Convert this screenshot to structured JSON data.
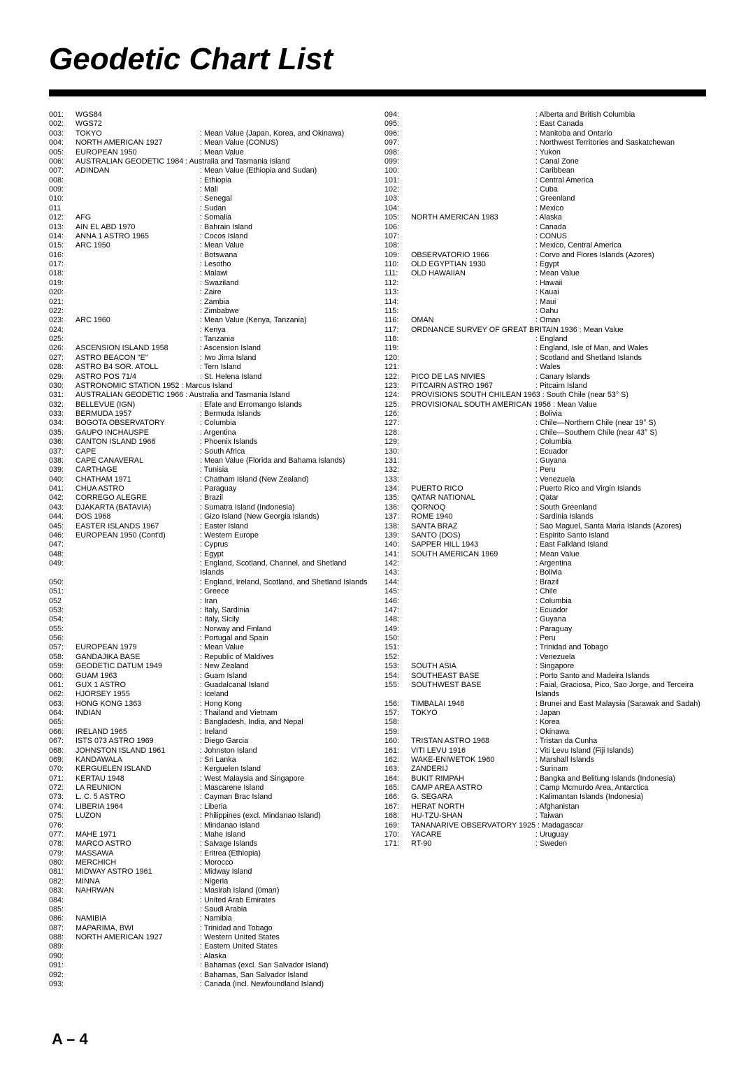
{
  "title": "Geodetic Chart List",
  "footer": "A – 4",
  "left": [
    {
      "n": "001:",
      "m": "WGS84",
      "d": ""
    },
    {
      "n": "002:",
      "m": "WGS72",
      "d": ""
    },
    {
      "n": "003:",
      "m": "TOKYO",
      "d": ": Mean Value (Japan, Korea, and Okinawa)"
    },
    {
      "n": "004:",
      "m": "NORTH AMERICAN 1927",
      "d": ": Mean Value (CONUS)"
    },
    {
      "n": "005:",
      "m": "EUROPEAN 1950",
      "d": ": Mean Value"
    },
    {
      "n": "006:",
      "m": "AUSTRALIAN GEODETIC 1984 : Australia and Tasmania Island",
      "d": "",
      "span": true
    },
    {
      "n": "007:",
      "m": "ADINDAN",
      "d": ": Mean Value (Ethiopia and Sudan)"
    },
    {
      "n": "008:",
      "m": "",
      "d": ": Ethiopia"
    },
    {
      "n": "009:",
      "m": "",
      "d": ": Mali"
    },
    {
      "n": "010:",
      "m": "",
      "d": ": Senegal"
    },
    {
      "n": "011",
      "m": "",
      "d": ": Sudan"
    },
    {
      "n": "012:",
      "m": "AFG",
      "d": ": Somalia"
    },
    {
      "n": "013:",
      "m": "AIN EL ABD 1970",
      "d": ": Bahrain Island"
    },
    {
      "n": "014:",
      "m": "ANNA 1 ASTRO 1965",
      "d": ": Cocos Island"
    },
    {
      "n": "015:",
      "m": "ARC 1950",
      "d": ": Mean Value"
    },
    {
      "n": "016:",
      "m": "",
      "d": ": Botswana"
    },
    {
      "n": "017:",
      "m": "",
      "d": ": Lesotho"
    },
    {
      "n": "018:",
      "m": "",
      "d": ": Malawi"
    },
    {
      "n": "019:",
      "m": "",
      "d": ": Swaziland"
    },
    {
      "n": "020:",
      "m": "",
      "d": ": Zaire"
    },
    {
      "n": "021:",
      "m": "",
      "d": ": Zambia"
    },
    {
      "n": "022:",
      "m": "",
      "d": ": Zimbabwe"
    },
    {
      "n": "023:",
      "m": "ARC 1960",
      "d": ": Mean Value (Kenya, Tanzania)"
    },
    {
      "n": "024:",
      "m": "",
      "d": ": Kenya"
    },
    {
      "n": "025:",
      "m": "",
      "d": ": Tanzania"
    },
    {
      "n": "026:",
      "m": "ASCENSION ISLAND 1958",
      "d": ": Ascension Island"
    },
    {
      "n": "027:",
      "m": "ASTRO BEACON \"E\"",
      "d": ": Iwo Jima Island"
    },
    {
      "n": "028:",
      "m": "ASTRO B4 SOR. ATOLL",
      "d": ": Tern Island"
    },
    {
      "n": "029:",
      "m": "ASTRO POS 71/4",
      "d": ": St. Helena Island"
    },
    {
      "n": "030:",
      "m": "ASTRONOMIC STATION 1952 : Marcus Island",
      "d": "",
      "span": true
    },
    {
      "n": "031:",
      "m": "AUSTRALIAN GEODETIC 1966 : Australia and Tasmania Island",
      "d": "",
      "span": true
    },
    {
      "n": "032:",
      "m": "BELLEVUE (IGN)",
      "d": ": Efate and Erromango Islands"
    },
    {
      "n": "033:",
      "m": "BERMUDA 1957",
      "d": ": Bermuda Islands"
    },
    {
      "n": "034:",
      "m": "BOGOTA OBSERVATORY",
      "d": ": Columbia"
    },
    {
      "n": "035:",
      "m": "GAUPO INCHAUSPE",
      "d": ": Argentina"
    },
    {
      "n": "036:",
      "m": "CANTON ISLAND 1966",
      "d": ": Phoenix Islands"
    },
    {
      "n": "037:",
      "m": "CAPE",
      "d": ": South Africa"
    },
    {
      "n": "038:",
      "m": "CAPE CANAVERAL",
      "d": ": Mean Value (Florida and Bahama Islands)"
    },
    {
      "n": "039:",
      "m": "CARTHAGE",
      "d": ": Tunisia"
    },
    {
      "n": "040:",
      "m": "CHATHAM 1971",
      "d": ": Chatham Island (New Zealand)"
    },
    {
      "n": "041:",
      "m": "CHUA ASTRO",
      "d": ": Paraguay"
    },
    {
      "n": "042:",
      "m": "CORREGO ALEGRE",
      "d": ": Brazil"
    },
    {
      "n": "043:",
      "m": "DJAKARTA (BATAVIA)",
      "d": ": Sumatra Island (Indonesia)"
    },
    {
      "n": "044:",
      "m": "DOS 1968",
      "d": ": Gizo Island (New Georgia Islands)"
    },
    {
      "n": "045:",
      "m": "EASTER ISLANDS 1967",
      "d": ": Easter Island"
    },
    {
      "n": "046:",
      "m": "EUROPEAN 1950 (Cont'd)",
      "d": ": Western Europe"
    },
    {
      "n": "047:",
      "m": "",
      "d": ": Cyprus"
    },
    {
      "n": "048:",
      "m": "",
      "d": ": Egypt"
    },
    {
      "n": "049:",
      "m": "",
      "d": ": England, Scotland, Channel, and Shetland Islands"
    },
    {
      "n": "050:",
      "m": "",
      "d": ": England, Ireland, Scotland, and Shetland Islands"
    },
    {
      "n": "051:",
      "m": "",
      "d": ": Greece"
    },
    {
      "n": "052",
      "m": "",
      "d": ": Iran"
    },
    {
      "n": "053:",
      "m": "",
      "d": ": Italy, Sardinia"
    },
    {
      "n": "054:",
      "m": "",
      "d": ": Italy, Sicily"
    },
    {
      "n": "055:",
      "m": "",
      "d": ": Norway and Finland"
    },
    {
      "n": "056:",
      "m": "",
      "d": ": Portugal and Spain"
    },
    {
      "n": "057:",
      "m": "EUROPEAN 1979",
      "d": ": Mean Value"
    },
    {
      "n": "058:",
      "m": "GANDAJIKA BASE",
      "d": ": Republic of Maldives"
    },
    {
      "n": "059:",
      "m": "GEODETIC DATUM 1949",
      "d": ": New Zealand"
    },
    {
      "n": "060:",
      "m": "GUAM 1963",
      "d": ": Guam Island"
    },
    {
      "n": "061:",
      "m": "GUX 1 ASTRO",
      "d": ": Guadalcanal Island"
    },
    {
      "n": "062:",
      "m": "HJORSEY 1955",
      "d": ": Iceland"
    },
    {
      "n": "063:",
      "m": "HONG KONG 1363",
      "d": ": Hong Kong"
    },
    {
      "n": "064:",
      "m": "INDIAN",
      "d": ": Thailand and Vietnam"
    },
    {
      "n": "065:",
      "m": "",
      "d": ": Bangladesh, India, and Nepal"
    },
    {
      "n": "066:",
      "m": "IRELAND 1965",
      "d": ": Ireland"
    },
    {
      "n": "067:",
      "m": "ISTS 073 ASTRO 1969",
      "d": ": Diego Garcia"
    },
    {
      "n": "068:",
      "m": "JOHNSTON ISLAND 1961",
      "d": ": Johnston Island"
    },
    {
      "n": "069:",
      "m": "KANDAWALA",
      "d": ": Sri Lanka"
    },
    {
      "n": "070:",
      "m": "KERGUELEN ISLAND",
      "d": ": Kerguelen Island"
    },
    {
      "n": "071:",
      "m": "KERTAU 1948",
      "d": ": West Malaysia and Singapore"
    },
    {
      "n": "072:",
      "m": "LA REUNION",
      "d": ": Mascarene Island"
    },
    {
      "n": "073:",
      "m": "L. C. 5 ASTRO",
      "d": ": Cayman Brac Island"
    },
    {
      "n": "074:",
      "m": "LIBERIA 1964",
      "d": ": Liberia"
    },
    {
      "n": "075:",
      "m": "LUZON",
      "d": ": Philippines (excl. Mindanao Island)"
    },
    {
      "n": "076:",
      "m": "",
      "d": ": Mindanao Island"
    },
    {
      "n": "077:",
      "m": "MAHE 1971",
      "d": ": Mahe Island"
    },
    {
      "n": "078:",
      "m": "MARCO ASTRO",
      "d": ": Salvage Islands"
    },
    {
      "n": "079:",
      "m": "MASSAWA",
      "d": ": Eritrea (Ethiopia)"
    },
    {
      "n": "080:",
      "m": "MERCHICH",
      "d": ": Morocco"
    },
    {
      "n": "081:",
      "m": "MIDWAY ASTRO 1961",
      "d": ": Midway Island"
    },
    {
      "n": "082:",
      "m": "MINNA",
      "d": ": Nigeria"
    },
    {
      "n": "083:",
      "m": "NAHRWAN",
      "d": ": Masirah Island (0man)"
    },
    {
      "n": "084:",
      "m": "",
      "d": ": United Arab Emirates"
    },
    {
      "n": "085:",
      "m": "",
      "d": ": Saudi Arabia"
    },
    {
      "n": "086:",
      "m": "NAMIBIA",
      "d": ": Namibia"
    },
    {
      "n": "087:",
      "m": "MAPARIMA, BWI",
      "d": ": Trinidad and Tobago"
    },
    {
      "n": "088:",
      "m": "NORTH AMERICAN 1927",
      "d": ": Western United States"
    },
    {
      "n": "089:",
      "m": "",
      "d": ": Eastern United States"
    },
    {
      "n": "090:",
      "m": "",
      "d": ": Alaska"
    },
    {
      "n": "091:",
      "m": "",
      "d": ": Bahamas (excl. San Salvador Island)"
    },
    {
      "n": "092:",
      "m": "",
      "d": ": Bahamas, San Salvador Island"
    },
    {
      "n": "093:",
      "m": "",
      "d": ": Canada (incl. Newfoundland Island)"
    }
  ],
  "right": [
    {
      "n": "094:",
      "m": "",
      "d": ": Alberta and British Columbia"
    },
    {
      "n": "095:",
      "m": "",
      "d": ": East Canada"
    },
    {
      "n": "096:",
      "m": "",
      "d": ": Manitoba and Ontario"
    },
    {
      "n": "097:",
      "m": "",
      "d": ": Northwest Territories and  Saskatchewan"
    },
    {
      "n": "098:",
      "m": "",
      "d": ": Yukon"
    },
    {
      "n": "099:",
      "m": "",
      "d": ": Canal Zone"
    },
    {
      "n": "100:",
      "m": "",
      "d": ": Caribbean"
    },
    {
      "n": "101:",
      "m": "",
      "d": ": Central America"
    },
    {
      "n": "102:",
      "m": "",
      "d": ": Cuba"
    },
    {
      "n": "103:",
      "m": "",
      "d": ": Greenland"
    },
    {
      "n": "104:",
      "m": "",
      "d": ": Mexico"
    },
    {
      "n": "105:",
      "m": "NORTH AMERICAN 1983",
      "d": ": Alaska"
    },
    {
      "n": "106:",
      "m": "",
      "d": ": Canada"
    },
    {
      "n": "107:",
      "m": "",
      "d": ": CONUS"
    },
    {
      "n": "108:",
      "m": "",
      "d": ": Mexico, Central America"
    },
    {
      "n": "109:",
      "m": "OBSERVATORIO 1966",
      "d": ": Corvo and Flores Islands (Azores)"
    },
    {
      "n": "110:",
      "m": "OLD EGYPTIAN 1930",
      "d": ": Egypt"
    },
    {
      "n": "111:",
      "m": "OLD HAWAIIAN",
      "d": ": Mean Value"
    },
    {
      "n": "112:",
      "m": "",
      "d": ": Hawaii"
    },
    {
      "n": "113:",
      "m": "",
      "d": ": Kauai"
    },
    {
      "n": "114:",
      "m": "",
      "d": ": Maui"
    },
    {
      "n": "115:",
      "m": "",
      "d": ": Oahu"
    },
    {
      "n": "116:",
      "m": "OMAN",
      "d": ": Oman"
    },
    {
      "n": "117:",
      "m": "ORDNANCE SURVEY OF GREAT BRITAIN 1936 : Mean Value",
      "d": "",
      "span": true
    },
    {
      "n": "118:",
      "m": "",
      "d": ": England"
    },
    {
      "n": "119:",
      "m": "",
      "d": ": England, Isle of Man, and Wales"
    },
    {
      "n": "120:",
      "m": "",
      "d": ": Scotland and Shetland Islands"
    },
    {
      "n": "121:",
      "m": "",
      "d": ": Wales"
    },
    {
      "n": "122:",
      "m": "PICO DE LAS NIVIES",
      "d": ": Canary Islands"
    },
    {
      "n": "123:",
      "m": "PITCAIRN ASTRO 1967",
      "d": ": Pitcairn Island"
    },
    {
      "n": "124:",
      "m": "PROVISIONS SOUTH CHILEAN 1963 : South Chile (near 53° S)",
      "d": "",
      "span": true
    },
    {
      "n": "125:",
      "m": "PROVISIONAL SOUTH AMERICAN 1956 : Mean Value",
      "d": "",
      "span": true
    },
    {
      "n": "126:",
      "m": "",
      "d": ": Bolivia"
    },
    {
      "n": "127:",
      "m": "",
      "d": ": Chile—Northern Chile (near 19° S)"
    },
    {
      "n": "128:",
      "m": "",
      "d": ": Chile—Southern Chile (near 43° S)"
    },
    {
      "n": "129:",
      "m": "",
      "d": ": Columbia"
    },
    {
      "n": "130:",
      "m": "",
      "d": ": Ecuador"
    },
    {
      "n": "131:",
      "m": "",
      "d": ": Guyana"
    },
    {
      "n": "132:",
      "m": "",
      "d": ": Peru"
    },
    {
      "n": "133:",
      "m": "",
      "d": ": Venezuela"
    },
    {
      "n": "134:",
      "m": "PUERTO RICO",
      "d": ": Puerto Rico and Virgin Islands"
    },
    {
      "n": "135:",
      "m": "QATAR NATIONAL",
      "d": ": Qatar"
    },
    {
      "n": "136:",
      "m": "QORNOQ",
      "d": ": South Greenland"
    },
    {
      "n": "137:",
      "m": "ROME 1940",
      "d": ": Sardinia Islands"
    },
    {
      "n": "138:",
      "m": "SANTA BRAZ",
      "d": ": Sao Maguel, Santa Maria Islands (Azores)"
    },
    {
      "n": "139:",
      "m": "SANTO (DOS)",
      "d": ": Espirito Santo Island"
    },
    {
      "n": "140:",
      "m": "SAPPER HILL 1943",
      "d": ": East Falkland Island"
    },
    {
      "n": "141:",
      "m": "SOUTH AMERICAN 1969",
      "d": ": Mean Value"
    },
    {
      "n": "142:",
      "m": "",
      "d": ": Argentina"
    },
    {
      "n": "143:",
      "m": "",
      "d": ": Bolivia"
    },
    {
      "n": "144:",
      "m": "",
      "d": ": Brazil"
    },
    {
      "n": "145:",
      "m": "",
      "d": ": Chile"
    },
    {
      "n": "146:",
      "m": "",
      "d": ": Columbia"
    },
    {
      "n": "147:",
      "m": "",
      "d": ": Ecuador"
    },
    {
      "n": "148:",
      "m": "",
      "d": ": Guyana"
    },
    {
      "n": "149:",
      "m": "",
      "d": ": Paraguay"
    },
    {
      "n": "150:",
      "m": "",
      "d": ": Peru"
    },
    {
      "n": "151:",
      "m": "",
      "d": ": Trinidad and Tobago"
    },
    {
      "n": "152:",
      "m": "",
      "d": ": Venezuela"
    },
    {
      "n": "153:",
      "m": "SOUTH ASIA",
      "d": ": Singapore"
    },
    {
      "n": "154:",
      "m": "SOUTHEAST BASE",
      "d": ": Porto Santo and Madeira Islands"
    },
    {
      "n": "155:",
      "m": "SOUTHWEST BASE",
      "d": ": Faial, Graciosa, Pico, Sao Jorge, and Terceira Islands"
    },
    {
      "n": "156:",
      "m": "TIMBALAI 1948",
      "d": ": Brunei and East Malaysia (Sarawak and Sadah)"
    },
    {
      "n": "157:",
      "m": "TOKYO",
      "d": ": Japan"
    },
    {
      "n": "158:",
      "m": "",
      "d": ": Korea"
    },
    {
      "n": "159:",
      "m": "",
      "d": ": Okinawa"
    },
    {
      "n": "160:",
      "m": "TRISTAN ASTRO 1968",
      "d": ": Tristan da Cunha"
    },
    {
      "n": "161:",
      "m": "VITI LEVU 1916",
      "d": ": Viti Levu Island (Fiji Islands)"
    },
    {
      "n": "162:",
      "m": "WAKE-ENIWETOK 1960",
      "d": ": Marshall Islands"
    },
    {
      "n": "163:",
      "m": "ZANDERIJ",
      "d": ": Surinam"
    },
    {
      "n": "164:",
      "m": "BUKIT RIMPAH",
      "d": ": Bangka and Belitung Islands (Indonesia)"
    },
    {
      "n": "165:",
      "m": "CAMP AREA ASTRO",
      "d": ": Camp Mcmurdo Area, Antarctica"
    },
    {
      "n": "166:",
      "m": "G. SEGARA",
      "d": ": Kalimantan Islands (Indonesia)"
    },
    {
      "n": "167:",
      "m": "HERAT NORTH",
      "d": ": Afghanistan"
    },
    {
      "n": "168:",
      "m": "HU-TZU-SHAN",
      "d": ": Taiwan"
    },
    {
      "n": "169:",
      "m": "TANANARIVE OBSERVATORY 1925 : Madagascar",
      "d": "",
      "span": true
    },
    {
      "n": "170:",
      "m": "YACARE",
      "d": ": Uruguay"
    },
    {
      "n": "171:",
      "m": "RT-90",
      "d": ": Sweden"
    }
  ]
}
